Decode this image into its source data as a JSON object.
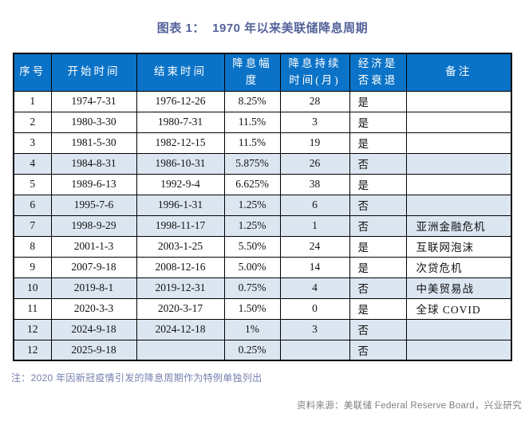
{
  "title": "图表 1：  1970 年以来美联储降息周期",
  "colors": {
    "header_bg": "#0B73C7",
    "header_text": "#FFFFFF",
    "highlight_row_bg": "#DCE6F1",
    "title_text": "#55639B",
    "footnote_text": "#7780AF",
    "source_text": "#7F7F7F",
    "border": "#000000"
  },
  "table": {
    "columns": [
      "no",
      "start",
      "end",
      "cut",
      "months",
      "recession",
      "note"
    ],
    "headers": [
      "序号",
      "开始时间",
      "结束时间",
      "降息幅\n度",
      "降息持续\n时间(月)",
      "经济是\n否衰退",
      "备注"
    ],
    "rows": [
      {
        "no": "1",
        "start": "1974-7-31",
        "end": "1976-12-26",
        "cut": "8.25%",
        "months": "28",
        "recession": "是",
        "note": "",
        "highlight": false
      },
      {
        "no": "2",
        "start": "1980-3-30",
        "end": "1980-7-31",
        "cut": "11.5%",
        "months": "3",
        "recession": "是",
        "note": "",
        "highlight": false
      },
      {
        "no": "3",
        "start": "1981-5-30",
        "end": "1982-12-15",
        "cut": "11.5%",
        "months": "19",
        "recession": "是",
        "note": "",
        "highlight": false
      },
      {
        "no": "4",
        "start": "1984-8-31",
        "end": "1986-10-31",
        "cut": "5.875%",
        "months": "26",
        "recession": "否",
        "note": "",
        "highlight": true
      },
      {
        "no": "5",
        "start": "1989-6-13",
        "end": "1992-9-4",
        "cut": "6.625%",
        "months": "38",
        "recession": "是",
        "note": "",
        "highlight": false
      },
      {
        "no": "6",
        "start": "1995-7-6",
        "end": "1996-1-31",
        "cut": "1.25%",
        "months": "6",
        "recession": "否",
        "note": "",
        "highlight": true
      },
      {
        "no": "7",
        "start": "1998-9-29",
        "end": "1998-11-17",
        "cut": "1.25%",
        "months": "1",
        "recession": "否",
        "note": "亚洲金融危机",
        "highlight": true
      },
      {
        "no": "8",
        "start": "2001-1-3",
        "end": "2003-1-25",
        "cut": "5.50%",
        "months": "24",
        "recession": "是",
        "note": "互联网泡沫",
        "highlight": false
      },
      {
        "no": "9",
        "start": "2007-9-18",
        "end": "2008-12-16",
        "cut": "5.00%",
        "months": "14",
        "recession": "是",
        "note": "次贷危机",
        "highlight": false
      },
      {
        "no": "10",
        "start": "2019-8-1",
        "end": "2019-12-31",
        "cut": "0.75%",
        "months": "4",
        "recession": "否",
        "note": "中美贸易战",
        "highlight": true
      },
      {
        "no": "11",
        "start": "2020-3-3",
        "end": "2020-3-17",
        "cut": "1.50%",
        "months": "0",
        "recession": "是",
        "note": "全球 COVID",
        "highlight": false
      },
      {
        "no": "12",
        "start": "2024-9-18",
        "end": "2024-12-18",
        "cut": "1%",
        "months": "3",
        "recession": "否",
        "note": "",
        "highlight": true
      },
      {
        "no": "12",
        "start": "2025-9-18",
        "end": "",
        "cut": "0.25%",
        "months": "",
        "recession": "否",
        "note": "",
        "highlight": true
      }
    ]
  },
  "footnote": "注：2020 年因新冠疫情引发的降息周期作为特例单独列出",
  "source": "资料来源：美联储 Federal Reserve Board，兴业研究"
}
